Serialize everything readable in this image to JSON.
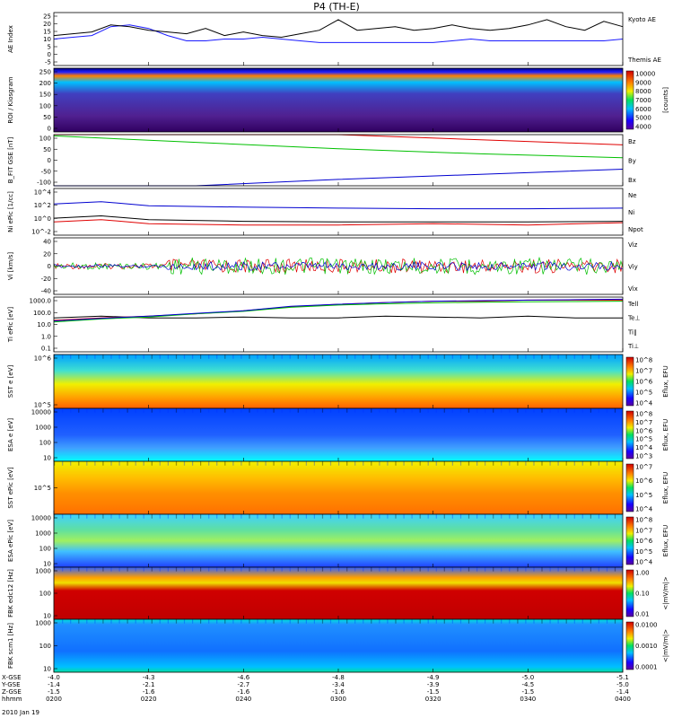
{
  "chart_data": {
    "type": "line",
    "title": "P4 (TH-E)",
    "date": "2010 Jan 19",
    "x": {
      "ticks": [
        "0200",
        "0220",
        "0240",
        "0300",
        "0320",
        "0340",
        "0400"
      ],
      "rows": [
        {
          "label": "X-GSE",
          "values": [
            "-4.0",
            "-4.3",
            "-4.6",
            "-4.8",
            "-4.9",
            "-5.0",
            "-5.1"
          ]
        },
        {
          "label": "Y-GSE",
          "values": [
            "-1.4",
            "-2.1",
            "-2.7",
            "-3.4",
            "-3.9",
            "-4.5",
            "-5.0"
          ]
        },
        {
          "label": "Z-GSE",
          "values": [
            "-1.5",
            "-1.6",
            "-1.6",
            "-1.6",
            "-1.5",
            "-1.5",
            "-1.4"
          ]
        },
        {
          "label": "hhmm",
          "values": [
            "0200",
            "0220",
            "0240",
            "0300",
            "0320",
            "0340",
            "0400"
          ]
        }
      ],
      "range": [
        0,
        120
      ],
      "unit": "minutes after 0200"
    },
    "panels": [
      {
        "id": "ae",
        "ylabel": "AE Index",
        "ylim": [
          -5,
          25
        ],
        "yticks": [
          "25",
          "20",
          "15",
          "10",
          "5",
          "0",
          "-5"
        ],
        "series": [
          {
            "name": "Kyoto AE",
            "color": "#1a1aff",
            "x": [
              0,
              4,
              8,
              12,
              16,
              20,
              24,
              28,
              32,
              36,
              40,
              44,
              48,
              52,
              56,
              60,
              64,
              68,
              72,
              76,
              80,
              84,
              88,
              92,
              96,
              100,
              104,
              108,
              112,
              116,
              120
            ],
            "y": [
              10,
              11,
              12,
              17,
              18,
              16,
              12,
              9,
              9,
              10,
              10,
              11,
              10,
              9,
              8,
              8,
              8,
              8,
              8,
              8,
              8,
              9,
              10,
              9,
              9,
              9,
              9,
              9,
              9,
              9,
              10
            ]
          },
          {
            "name": "Themis AE",
            "color": "#000000",
            "x": [
              0,
              4,
              8,
              12,
              16,
              20,
              24,
              28,
              32,
              36,
              40,
              44,
              48,
              52,
              56,
              60,
              64,
              68,
              72,
              76,
              80,
              84,
              88,
              92,
              96,
              100,
              104,
              108,
              112,
              116,
              120
            ],
            "y": [
              12,
              13,
              14,
              18,
              17,
              15,
              14,
              13,
              16,
              12,
              14,
              12,
              11,
              13,
              15,
              21,
              15,
              16,
              17,
              15,
              16,
              18,
              16,
              15,
              16,
              18,
              21,
              17,
              15,
              20,
              17
            ]
          }
        ]
      },
      {
        "id": "kiosk",
        "ylabel": "ROI / Kiosgram",
        "ylim": [
          0,
          250
        ],
        "yticks": [
          "250",
          "200",
          "150",
          "100",
          "50",
          "0"
        ],
        "colorbar": {
          "label": "[counts]",
          "ticks": [
            "10000",
            "9000",
            "8000",
            "7000",
            "6000",
            "5000",
            "4000"
          ]
        }
      },
      {
        "id": "bfit",
        "ylabel": "B_FIT GSE [nT]",
        "ylim": [
          -100,
          100
        ],
        "yticks": [
          "100",
          "50",
          "0",
          "-50",
          "-100"
        ],
        "series": [
          {
            "name": "Bz",
            "color": "#e00000",
            "x": [
              0,
              60,
              120
            ],
            "y": [
              160,
              120,
              60
            ]
          },
          {
            "name": "By",
            "color": "#00c000",
            "x": [
              0,
              30,
              60,
              90,
              120
            ],
            "y": [
              95,
              70,
              45,
              25,
              10
            ]
          },
          {
            "name": "Bx",
            "color": "#0000d0",
            "x": [
              0,
              30,
              60,
              90,
              120
            ],
            "y": [
              -160,
              -110,
              -75,
              -55,
              -35
            ]
          }
        ]
      },
      {
        "id": "ni",
        "ylabel": "Ni ePic [1/cc]",
        "log": true,
        "ylim": [
          0.01,
          10000
        ],
        "yticks": [
          "10^4",
          "10^2",
          "10^0",
          "10^-2"
        ],
        "series": [
          {
            "name": "Ne",
            "color": "#e00000",
            "x": [
              0,
              10,
              20,
              40,
              60,
              80,
              100,
              120
            ],
            "y": [
              0.5,
              1,
              0.3,
              0.2,
              0.2,
              0.3,
              0.2,
              0.4
            ]
          },
          {
            "name": "Ni",
            "color": "#000000",
            "x": [
              0,
              10,
              20,
              40,
              60,
              80,
              100,
              120
            ],
            "y": [
              1.5,
              3,
              1,
              0.6,
              0.5,
              0.5,
              0.5,
              0.6
            ]
          },
          {
            "name": "Npot",
            "color": "#0000d0",
            "x": [
              0,
              10,
              20,
              40,
              60,
              80,
              100,
              120
            ],
            "y": [
              100,
              200,
              60,
              40,
              30,
              25,
              25,
              30
            ]
          }
        ]
      },
      {
        "id": "vi",
        "ylabel": "Vi [km/s]",
        "ylim": [
          -40,
          40
        ],
        "yticks": [
          "40",
          "20",
          "0",
          "-20",
          "-40"
        ],
        "series": [
          {
            "name": "Viz",
            "color": "#e00000",
            "amp": 10
          },
          {
            "name": "Viy",
            "color": "#00c000",
            "amp": 12
          },
          {
            "name": "Vix",
            "color": "#0000d0",
            "amp": 6
          }
        ]
      },
      {
        "id": "ti",
        "ylabel": "Ti ePic [eV]",
        "log": true,
        "ylim": [
          0.1,
          1000
        ],
        "yticks": [
          "1000.0",
          "100.0",
          "10.0",
          "1.0",
          "0.1"
        ],
        "series": [
          {
            "name": "Tell",
            "color": "#000000",
            "x": [
              0,
              10,
              20,
              30,
              40,
              50,
              60,
              70,
              80,
              90,
              100,
              110,
              120
            ],
            "y": [
              30,
              40,
              30,
              30,
              35,
              30,
              30,
              40,
              35,
              30,
              40,
              30,
              30
            ]
          },
          {
            "name": "Te⊥",
            "color": "#e00000",
            "x": [
              0,
              10,
              20,
              30,
              40,
              50,
              60,
              70,
              80,
              90,
              100,
              110,
              120
            ],
            "y": [
              20,
              30,
              40,
              60,
              100,
              200,
              300,
              400,
              500,
              500,
              600,
              600,
              600
            ]
          },
          {
            "name": "Ti∥",
            "color": "#00c000",
            "x": [
              0,
              10,
              20,
              30,
              40,
              50,
              60,
              70,
              80,
              90,
              100,
              110,
              120
            ],
            "y": [
              15,
              25,
              35,
              60,
              90,
              180,
              260,
              320,
              380,
              420,
              450,
              470,
              500
            ]
          },
          {
            "name": "Ti⊥",
            "color": "#0000d0",
            "x": [
              0,
              10,
              20,
              30,
              40,
              50,
              60,
              70,
              80,
              90,
              100,
              110,
              120
            ],
            "y": [
              18,
              28,
              40,
              65,
              100,
              210,
              300,
              400,
              500,
              550,
              600,
              650,
              700
            ]
          }
        ]
      },
      {
        "id": "sst_e",
        "ylabel": "SST e [eV]",
        "yticks": [
          "10^6",
          "10^5"
        ],
        "colorbar": {
          "label": "Eflux, EFU",
          "ticks": [
            "10^8",
            "10^7",
            "10^6",
            "10^5",
            "10^4"
          ]
        }
      },
      {
        "id": "esa_e",
        "ylabel": "ESA e [eV]",
        "yticks": [
          "10000",
          "1000",
          "100",
          "10"
        ],
        "colorbar": {
          "label": "Eflux, EFU",
          "ticks": [
            "10^8",
            "10^7",
            "10^6",
            "10^5",
            "10^4",
            "10^3"
          ]
        }
      },
      {
        "id": "sst_i",
        "ylabel": "SST ePic [eV]",
        "yticks": [
          "10^5"
        ],
        "colorbar": {
          "label": "Eflux, EFU",
          "ticks": [
            "10^7",
            "10^6",
            "10^5",
            "10^4"
          ]
        }
      },
      {
        "id": "esa_i",
        "ylabel": "ESA ePic [eV]",
        "yticks": [
          "10000",
          "1000",
          "100",
          "10"
        ],
        "colorbar": {
          "label": "Eflux, EFU",
          "ticks": [
            "10^8",
            "10^7",
            "10^6",
            "10^5",
            "10^4"
          ]
        }
      },
      {
        "id": "fbk_b",
        "ylabel": "FBK edc12 [Hz]",
        "yticks": [
          "1000",
          "100",
          "10"
        ],
        "colorbar": {
          "label": "<|mV/m|>",
          "ticks": [
            "1.00",
            "0.10",
            "0.01"
          ]
        }
      },
      {
        "id": "fbk_b2",
        "ylabel": "FBK scm1 [Hz]",
        "yticks": [
          "1000",
          "100",
          "10"
        ],
        "colorbar": {
          "label": "<|mV/m|>",
          "ticks": [
            "0.0100",
            "0.0010",
            "0.0001"
          ]
        }
      }
    ]
  }
}
